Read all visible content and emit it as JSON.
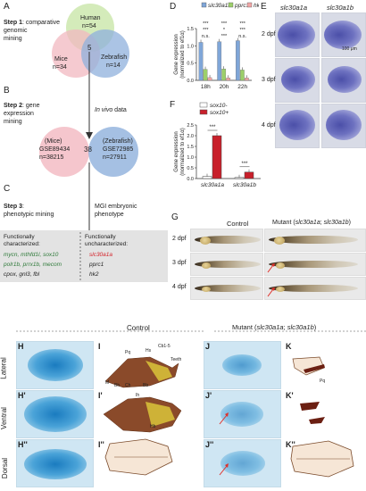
{
  "panel_a": {
    "letter": "A",
    "step_label": "Step 1",
    "step_text_1": ": comparative",
    "step_text_2": "genomic",
    "step_text_3": "mining",
    "human": "Human",
    "human_n": "n=54",
    "mice": "Mice",
    "mice_n": "n=34",
    "zebrafish": "Zebrafish",
    "zebrafish_n": "n=14",
    "overlap": "5"
  },
  "panel_b": {
    "letter": "B",
    "step_label": "Step 2",
    "step_text_1": ": gene",
    "step_text_2": "expression",
    "step_text_3": "mining",
    "in_vivo": "In vivo",
    "in_vivo_rest": " data",
    "mice_label": "(Mice)",
    "mice_gse": "GSE89434",
    "mice_n": "n=38215",
    "zebrafish_label": "(Zebrafish)",
    "zebrafish_gse": "GSE72985",
    "zebrafish_n": "n=27911",
    "overlap": "38"
  },
  "panel_c": {
    "letter": "C",
    "step_label": "Step 3",
    "step_text_1": ":",
    "step_text_2": "phenotypic mining",
    "mgi_1": "MGI embryonic",
    "mgi_2": "phenotype",
    "characterized_1": "Functionally",
    "characterized_2": "characterized:",
    "uncharacterized_1": "Functionally",
    "uncharacterized_2": "uncharacterized:",
    "genes_left": [
      "mycn, mthfd1l, sox10",
      "polr1b, prrx1b, mecom",
      "cpox, gnl3, fbl"
    ],
    "genes_right": [
      "slc30a1a",
      "pprc1",
      "hk2"
    ]
  },
  "panel_d": {
    "letter": "D",
    "chart_data": {
      "type": "bar",
      "categories": [
        "18h",
        "20h",
        "22h"
      ],
      "series": [
        {
          "name": "slc30a1a",
          "values": [
            1.1,
            1.12,
            1.15
          ]
        },
        {
          "name": "pprc1",
          "values": [
            0.32,
            0.33,
            0.3
          ]
        },
        {
          "name": "hk2",
          "values": [
            0.08,
            0.07,
            0.07
          ]
        }
      ],
      "ylabel": "Gene expression (normalized to ef1α)",
      "ylabel_1": "Gene expression",
      "ylabel_2": "(normalized to ef1α)",
      "yticks": [
        "0.0",
        "0.5",
        "1.0",
        "1.5"
      ],
      "ylim": [
        0,
        1.5
      ],
      "significance": [
        "***",
        "***",
        "n.s.",
        "***",
        "*",
        "***",
        "***",
        "***",
        "n.s."
      ],
      "legend_position": "top",
      "colors": [
        "#7fa6d8",
        "#9ccf6a",
        "#f2a6a6"
      ]
    }
  },
  "panel_e": {
    "letter": "E",
    "col1": "slc30a1a",
    "col2": "slc30a1b",
    "rows": [
      "2 dpf",
      "3 dpf",
      "4 dpf"
    ],
    "scale": "100 μm"
  },
  "panel_f": {
    "letter": "F",
    "chart_data": {
      "type": "bar",
      "categories": [
        "slc30a1a",
        "slc30a1b"
      ],
      "series": [
        {
          "name": "sox10-",
          "values": [
            0.1,
            0.05
          ]
        },
        {
          "name": "sox10+",
          "values": [
            2.0,
            0.3
          ]
        }
      ],
      "ylabel": "Gene expression (normalized to ef1α)",
      "ylabel_1": "Gene expression",
      "ylabel_2": "(normalized to ef1α)",
      "yticks": [
        "0.0",
        "0.5",
        "1.0",
        "1.5",
        "2.0",
        "2.5"
      ],
      "ylim": [
        0,
        2.5
      ],
      "significance": [
        "***",
        "***"
      ],
      "legend_position": "top-left",
      "colors": [
        "#ffffff",
        "#c8202b"
      ]
    }
  },
  "panel_g": {
    "letter": "G",
    "control": "Control",
    "mutant": "Mutant (",
    "mutant_genes": "slc30a1a",
    "mutant_mid": "; ",
    "mutant_genes_2": "slc30a1b",
    "mutant_end": ")",
    "rows": [
      "2 dpf",
      "3 dpf",
      "4 dpf"
    ]
  },
  "panel_bottom": {
    "control": "Control",
    "mutant": "Mutant (",
    "mutant_genes": "slc30a1a",
    "mutant_mid": "; ",
    "mutant_genes_2": "slc30a1b",
    "mutant_end": ")",
    "rows": [
      "Lateral",
      "Ventral",
      "Dorsal"
    ],
    "letters_h": [
      "H",
      "H'",
      "H''"
    ],
    "letters_i": [
      "I",
      "I'",
      "I''"
    ],
    "letters_j": [
      "J",
      "J'",
      "J''"
    ],
    "letters_k": [
      "K",
      "K'",
      "K''"
    ],
    "cartilage_labels": [
      "Pq",
      "Hs",
      "Cb1-5",
      "Teeth",
      "M",
      "Bh",
      "Ch",
      "Bb",
      "Ih",
      "Hb",
      "Pq"
    ]
  }
}
